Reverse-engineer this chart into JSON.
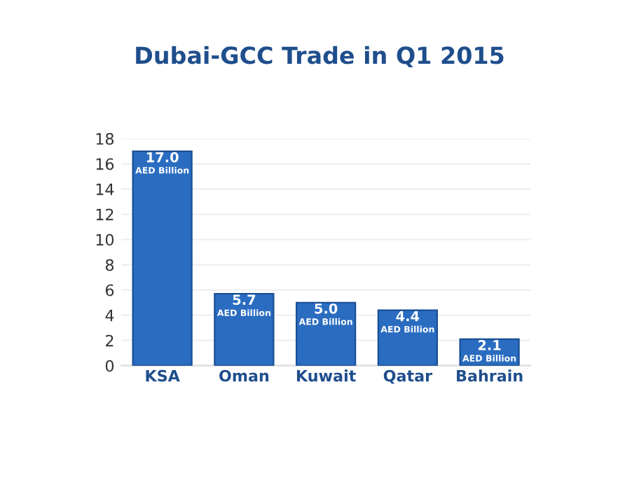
{
  "chart_data": {
    "type": "bar",
    "title": "Dubai-GCC Trade in Q1 2015",
    "categories": [
      "KSA",
      "Oman",
      "Kuwait",
      "Qatar",
      "Bahrain"
    ],
    "values": [
      17.0,
      5.7,
      5.0,
      4.4,
      2.1
    ],
    "color": "#2a6cc0",
    "value_labels": [
      "17.0\nAED Billion",
      "5.7\nAED Billion",
      "5.0\nAED Billion",
      "4.4\nAED Billion",
      "2.1\nAED Billion"
    ],
    "ylim": [
      0,
      18
    ],
    "yticks": [
      0,
      2,
      4,
      6,
      8,
      10,
      12,
      14,
      16,
      18
    ],
    "grid": "y",
    "legend": false
  }
}
